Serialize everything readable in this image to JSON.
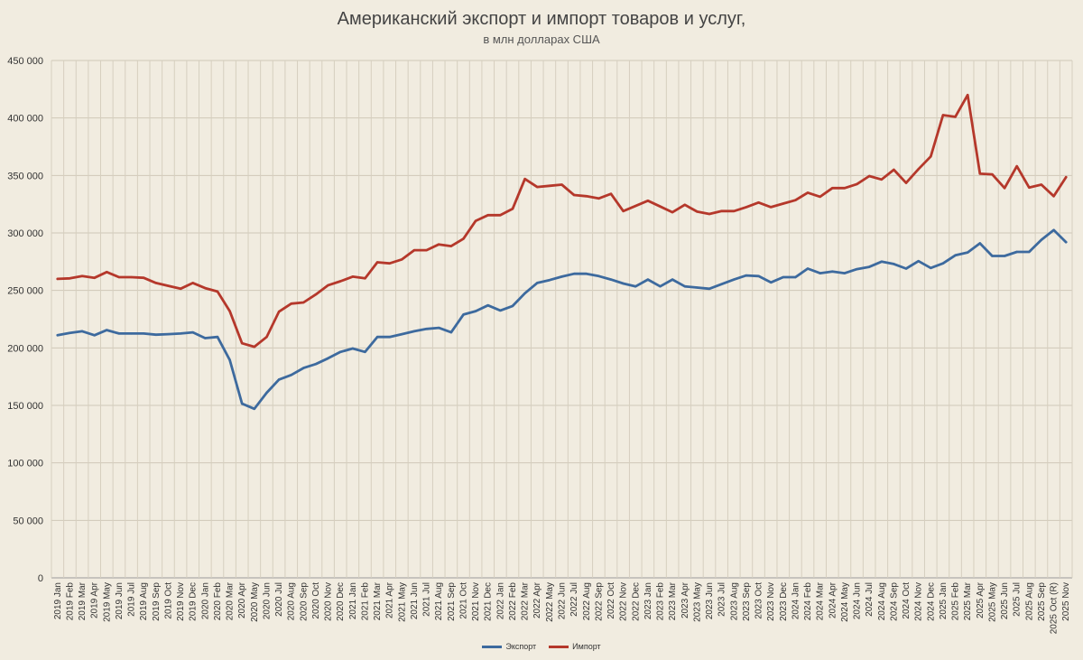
{
  "chart_data": {
    "type": "line",
    "title": "Американский экспорт и импорт товаров и услуг,",
    "subtitle": "в млн долларах США",
    "ylim": [
      0,
      450000
    ],
    "yticks": [
      "0",
      "50 000",
      "100 000",
      "150 000",
      "200 000",
      "250 000",
      "300 000",
      "350 000",
      "400 000",
      "450 000"
    ],
    "grid": "vertical-and-horizontal",
    "legend_position": "bottom",
    "categories": [
      "2019 Jan",
      "2019 Feb",
      "2019 Mar",
      "2019 Apr",
      "2019 May",
      "2019 Jun",
      "2019 Jul",
      "2019 Aug",
      "2019 Sep",
      "2019 Oct",
      "2019 Nov",
      "2019 Dec",
      "2020 Jan",
      "2020 Feb",
      "2020 Mar",
      "2020 Apr",
      "2020 May",
      "2020 Jun",
      "2020 Jul",
      "2020 Aug",
      "2020 Sep",
      "2020 Oct",
      "2020 Nov",
      "2020 Dec",
      "2021 Jan",
      "2021 Feb",
      "2021 Mar",
      "2021 Apr",
      "2021 May",
      "2021 Jun",
      "2021 Jul",
      "2021 Aug",
      "2021 Sep",
      "2021 Oct",
      "2021 Nov",
      "2021 Dec",
      "2022 Jan",
      "2022 Feb",
      "2022 Mar",
      "2022 Apr",
      "2022 May",
      "2022 Jun",
      "2022 Jul",
      "2022 Aug",
      "2022 Sep",
      "2022 Oct",
      "2022 Nov",
      "2022 Dec",
      "2023 Jan",
      "2023 Feb",
      "2023 Mar",
      "2023 Apr",
      "2023 May",
      "2023 Jun",
      "2023 Jul",
      "2023 Aug",
      "2023 Sep",
      "2023 Oct",
      "2023 Nov",
      "2023 Dec",
      "2024 Jan",
      "2024 Feb",
      "2024 Mar",
      "2024 Apr",
      "2024 May",
      "2024 Jun",
      "2024 Jul",
      "2024 Aug",
      "2024 Sep",
      "2024 Oct",
      "2024 Nov",
      "2024 Dec",
      "2025 Jan",
      "2025 Feb",
      "2025 Mar",
      "2025 Apr",
      "2025 May",
      "2025 Jun",
      "2025 Jul",
      "2025 Aug",
      "2025 Sep",
      "2025 Oct (R)",
      "2025 Nov"
    ],
    "series": [
      {
        "name": "Экспорт",
        "color": "#3d6a9e",
        "values": [
          211000,
          213000,
          214500,
          211000,
          215500,
          212500,
          212500,
          212500,
          211500,
          212000,
          212500,
          213500,
          208500,
          209500,
          189500,
          151500,
          147000,
          161000,
          172500,
          176500,
          182500,
          186000,
          191000,
          196500,
          199500,
          196500,
          209500,
          209500,
          212000,
          214500,
          216500,
          217500,
          213500,
          229000,
          232000,
          237000,
          232500,
          236500,
          247500,
          256500,
          259000,
          262000,
          264500,
          264500,
          262500,
          259500,
          256000,
          253500,
          259500,
          253500,
          259500,
          253500,
          252500,
          251500,
          255500,
          259500,
          263000,
          262500,
          257000,
          261500,
          261500,
          269000,
          265000,
          266500,
          265000,
          268500,
          270500,
          275000,
          273000,
          269000,
          275500,
          269500,
          273500,
          280500,
          283000,
          291000,
          280000,
          280000,
          283500,
          283500,
          294000,
          302500,
          292000
        ]
      },
      {
        "name": "Импорт",
        "color": "#b5382b",
        "values": [
          260000,
          260500,
          262500,
          261000,
          266000,
          261500,
          261500,
          261000,
          256500,
          254000,
          251500,
          256500,
          252000,
          249000,
          232000,
          204000,
          201000,
          209500,
          231500,
          238500,
          239500,
          246500,
          254500,
          258000,
          262000,
          260500,
          274500,
          273500,
          277000,
          285000,
          285000,
          290000,
          288500,
          295000,
          310500,
          315500,
          315500,
          321000,
          347000,
          340000,
          341000,
          342000,
          333000,
          332000,
          330000,
          334000,
          319000,
          323500,
          328000,
          323000,
          318000,
          324500,
          318500,
          316500,
          319000,
          319000,
          322500,
          326500,
          322500,
          325500,
          328500,
          335000,
          331500,
          339000,
          339000,
          342500,
          349500,
          346500,
          355000,
          343500,
          355500,
          366500,
          402500,
          401000,
          420000,
          351500,
          351000,
          339000,
          358000,
          339500,
          342000,
          332000,
          348500
        ]
      }
    ]
  }
}
